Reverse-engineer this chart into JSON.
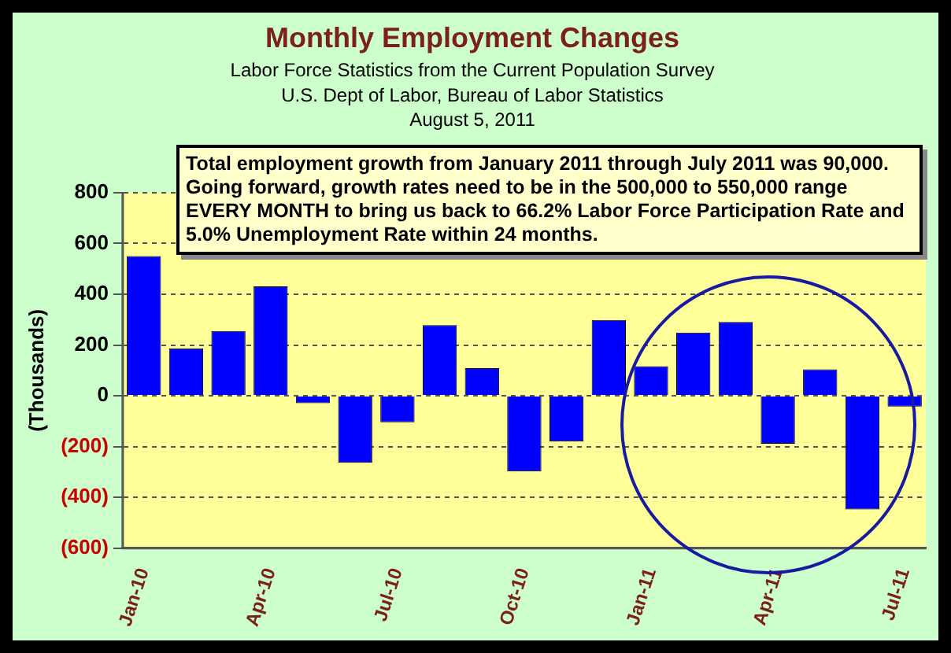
{
  "chart_data": {
    "type": "bar",
    "title": "Monthly Employment Changes",
    "subtitle": "Labor Force Statistics from the Current Population Survey\nU.S. Dept of Labor, Bureau of Labor Statistics\nAugust 5, 2011",
    "ylabel": "(Thousands)",
    "annotations": [
      "Total employment growth from January 2011 through July 2011 was 90,000.  Going forward, growth rates need to be in the 500,000 to 550,000 range EVERY MONTH to bring us back to 66.2% Labor Force Participation Rate and 5.0% Unemployment Rate within 24 months."
    ],
    "categories": [
      "Jan-10",
      null,
      null,
      "Apr-10",
      null,
      null,
      "Jul-10",
      null,
      null,
      "Oct-10",
      null,
      null,
      "Jan-11",
      null,
      null,
      "Apr-11",
      null,
      null,
      "Jul-11"
    ],
    "values": [
      550,
      187,
      255,
      431,
      -29,
      -264,
      -104,
      278,
      109,
      -298,
      -180,
      298,
      116,
      249,
      291,
      -189,
      104,
      -447,
      -42
    ],
    "color": "#0000ff",
    "ylim": [
      -600,
      800
    ],
    "yticks": [
      {
        "value": -600,
        "label": "(600)"
      },
      {
        "value": -400,
        "label": "(400)"
      },
      {
        "value": -200,
        "label": "(200)"
      },
      0,
      200,
      400,
      600,
      800
    ],
    "grid": "y"
  }
}
